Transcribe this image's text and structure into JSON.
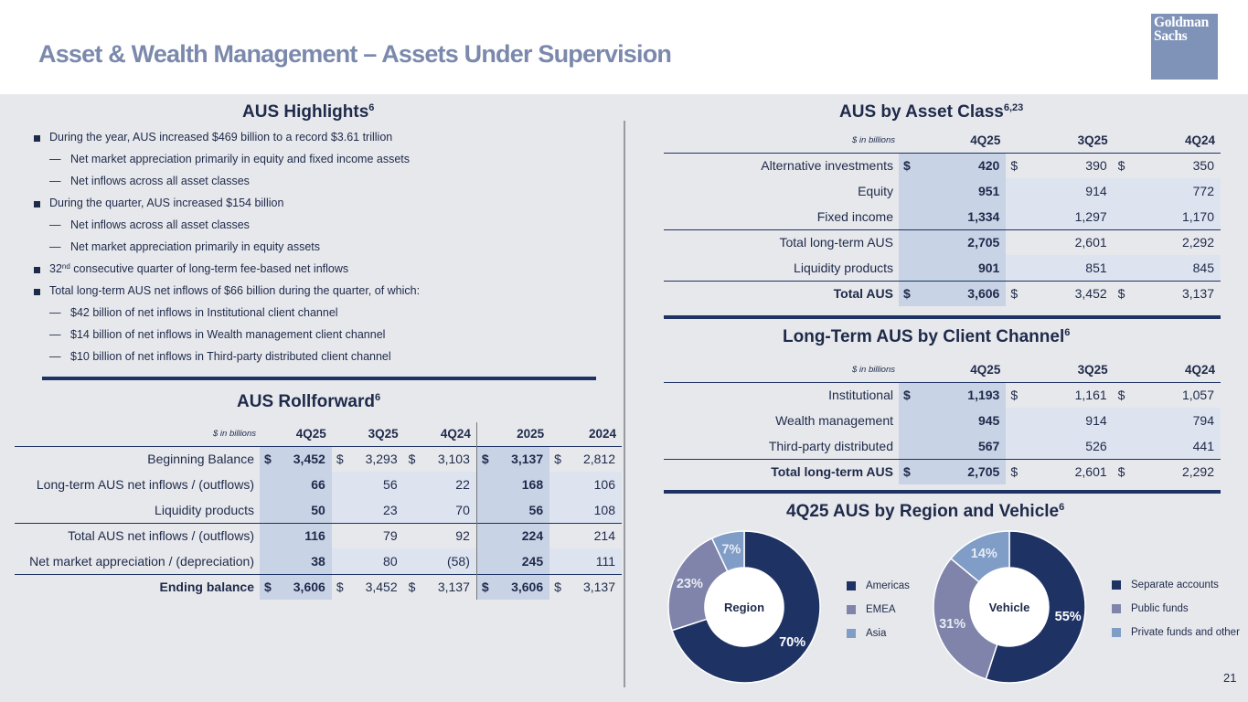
{
  "header": {
    "title": "Asset & Wealth Management – Assets Under Supervision",
    "logo_line1": "Goldman",
    "logo_line2": "Sachs"
  },
  "highlights": {
    "title": "AUS Highlights",
    "sup": "6",
    "items": [
      {
        "text": "During the year, AUS increased $469 billion to a record $3.61 trillion"
      },
      {
        "text": "Net market appreciation primarily in equity and fixed income assets"
      },
      {
        "text": "Net inflows across all asset classes"
      },
      {
        "text": "During the quarter, AUS increased $154 billion"
      },
      {
        "text": "Net inflows across all asset classes"
      },
      {
        "text": "Net market appreciation primarily in equity assets"
      },
      {
        "pre": "32",
        "sup": "nd",
        "text": " consecutive quarter of long-term fee-based net inflows"
      },
      {
        "text": "Total long-term AUS net inflows of $66 billion during the quarter, of which:"
      },
      {
        "text": "$42 billion of net inflows in Institutional client channel"
      },
      {
        "text": "$14 billion of net inflows in Wealth management client channel"
      },
      {
        "text": "$10 billion of net inflows in Third-party distributed client channel"
      }
    ]
  },
  "rollforward": {
    "title": "AUS Rollforward",
    "sup": "6",
    "unit": "$ in billions",
    "columns": [
      "4Q25",
      "3Q25",
      "4Q24",
      "2025",
      "2024"
    ],
    "rows": [
      {
        "label": "Beginning Balance",
        "values": [
          "3,452",
          "3,293",
          "3,103",
          "3,137",
          "2,812"
        ]
      },
      {
        "label": "Long-term AUS net inflows / (outflows)",
        "values": [
          "66",
          "56",
          "22",
          "168",
          "106"
        ]
      },
      {
        "label": "Liquidity products",
        "values": [
          "50",
          "23",
          "70",
          "56",
          "108"
        ]
      },
      {
        "label": "Total AUS net inflows / (outflows)",
        "values": [
          "116",
          "79",
          "92",
          "224",
          "214"
        ]
      },
      {
        "label": "Net market appreciation / (depreciation)",
        "values": [
          "38",
          "80",
          "(58)",
          "245",
          "111"
        ]
      },
      {
        "label": "Ending balance",
        "values": [
          "3,606",
          "3,452",
          "3,137",
          "3,606",
          "3,137"
        ]
      }
    ]
  },
  "asset_class": {
    "title": "AUS by Asset Class",
    "sup": "6,23",
    "unit": "$ in billions",
    "columns": [
      "4Q25",
      "3Q25",
      "4Q24"
    ],
    "rows": [
      {
        "label": "Alternative investments",
        "values": [
          "420",
          "390",
          "350"
        ]
      },
      {
        "label": "Equity",
        "values": [
          "951",
          "914",
          "772"
        ]
      },
      {
        "label": "Fixed income",
        "values": [
          "1,334",
          "1,297",
          "1,170"
        ]
      },
      {
        "label": "Total long-term AUS",
        "values": [
          "2,705",
          "2,601",
          "2,292"
        ]
      },
      {
        "label": "Liquidity products",
        "values": [
          "901",
          "851",
          "845"
        ]
      },
      {
        "label": "Total AUS",
        "values": [
          "3,606",
          "3,452",
          "3,137"
        ]
      }
    ]
  },
  "client_channel": {
    "title": "Long-Term AUS by Client Channel",
    "sup": "6",
    "unit": "$ in billions",
    "columns": [
      "4Q25",
      "3Q25",
      "4Q24"
    ],
    "rows": [
      {
        "label": "Institutional",
        "values": [
          "1,193",
          "1,161",
          "1,057"
        ]
      },
      {
        "label": "Wealth management",
        "values": [
          "945",
          "914",
          "794"
        ]
      },
      {
        "label": "Third-party distributed",
        "values": [
          "567",
          "526",
          "441"
        ]
      },
      {
        "label": "Total long-term AUS",
        "values": [
          "2,705",
          "2,601",
          "2,292"
        ]
      }
    ]
  },
  "currency_symbol": "$",
  "region_vehicle": {
    "title": "4Q25 AUS by Region and Vehicle",
    "sup": "6"
  },
  "chart_data": [
    {
      "type": "pie",
      "title": "Region",
      "categories": [
        "Americas",
        "EMEA",
        "Asia"
      ],
      "values": [
        70,
        23,
        7
      ],
      "labels": [
        "70%",
        "23%",
        "7%"
      ],
      "colors": [
        "#1e3264",
        "#8084aa",
        "#7f9dc6"
      ]
    },
    {
      "type": "pie",
      "title": "Vehicle",
      "categories": [
        "Separate accounts",
        "Public funds",
        "Private funds and other"
      ],
      "values": [
        55,
        31,
        14
      ],
      "labels": [
        "55%",
        "31%",
        "14%"
      ],
      "colors": [
        "#1e3264",
        "#8084aa",
        "#7f9dc6"
      ]
    }
  ],
  "page_number": "21"
}
